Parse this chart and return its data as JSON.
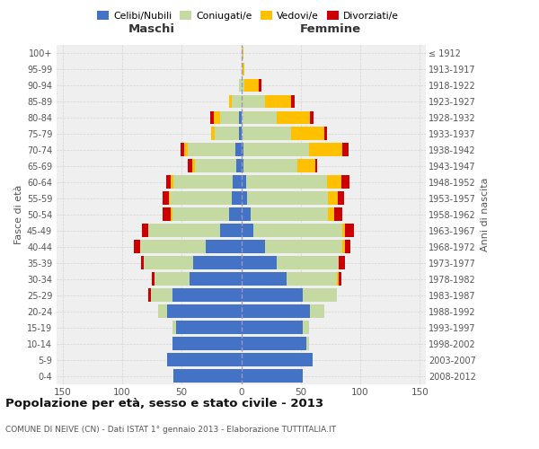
{
  "age_groups": [
    "0-4",
    "5-9",
    "10-14",
    "15-19",
    "20-24",
    "25-29",
    "30-34",
    "35-39",
    "40-44",
    "45-49",
    "50-54",
    "55-59",
    "60-64",
    "65-69",
    "70-74",
    "75-79",
    "80-84",
    "85-89",
    "90-94",
    "95-99",
    "100+"
  ],
  "birth_years": [
    "2008-2012",
    "2003-2007",
    "1998-2002",
    "1993-1997",
    "1988-1992",
    "1983-1987",
    "1978-1982",
    "1973-1977",
    "1968-1972",
    "1963-1967",
    "1958-1962",
    "1953-1957",
    "1948-1952",
    "1943-1947",
    "1938-1942",
    "1933-1937",
    "1928-1932",
    "1923-1927",
    "1918-1922",
    "1913-1917",
    "≤ 1912"
  ],
  "males": {
    "celibe": [
      57,
      62,
      58,
      55,
      62,
      58,
      43,
      40,
      30,
      18,
      10,
      8,
      7,
      4,
      5,
      2,
      2,
      0,
      0,
      0,
      0
    ],
    "coniugato": [
      0,
      0,
      0,
      3,
      8,
      18,
      30,
      42,
      55,
      60,
      48,
      52,
      50,
      35,
      40,
      20,
      16,
      8,
      2,
      0,
      0
    ],
    "vedovo": [
      0,
      0,
      0,
      0,
      0,
      0,
      0,
      0,
      0,
      0,
      1,
      1,
      2,
      2,
      3,
      3,
      5,
      2,
      0,
      0,
      0
    ],
    "divorziato": [
      0,
      0,
      0,
      0,
      0,
      2,
      2,
      2,
      5,
      5,
      7,
      5,
      4,
      4,
      3,
      0,
      3,
      0,
      0,
      0,
      0
    ]
  },
  "females": {
    "nubile": [
      52,
      60,
      55,
      52,
      58,
      52,
      38,
      30,
      20,
      10,
      8,
      5,
      4,
      2,
      2,
      0,
      0,
      0,
      0,
      0,
      0
    ],
    "coniugata": [
      0,
      0,
      2,
      5,
      12,
      28,
      42,
      52,
      65,
      75,
      65,
      68,
      68,
      45,
      55,
      42,
      30,
      20,
      3,
      1,
      1
    ],
    "vedova": [
      0,
      0,
      0,
      0,
      0,
      0,
      2,
      0,
      2,
      2,
      5,
      8,
      12,
      15,
      28,
      28,
      28,
      22,
      12,
      2,
      1
    ],
    "divorziata": [
      0,
      0,
      0,
      0,
      0,
      0,
      2,
      5,
      5,
      8,
      7,
      5,
      7,
      2,
      5,
      2,
      3,
      3,
      2,
      0,
      0
    ]
  },
  "color_celibe": "#4472c4",
  "color_coniugato": "#c5d9a3",
  "color_vedovo": "#ffc000",
  "color_divorziato": "#cc0000",
  "title": "Popolazione per età, sesso e stato civile - 2013",
  "subtitle": "COMUNE DI NEIVE (CN) - Dati ISTAT 1° gennaio 2013 - Elaborazione TUTTITALIA.IT",
  "xlabel_maschi": "Maschi",
  "xlabel_femmine": "Femmine",
  "ylabel_left": "Fasce di età",
  "ylabel_right": "Anni di nascita",
  "xlim": 155,
  "background_color": "#efefef",
  "grid_color": "#cccccc"
}
